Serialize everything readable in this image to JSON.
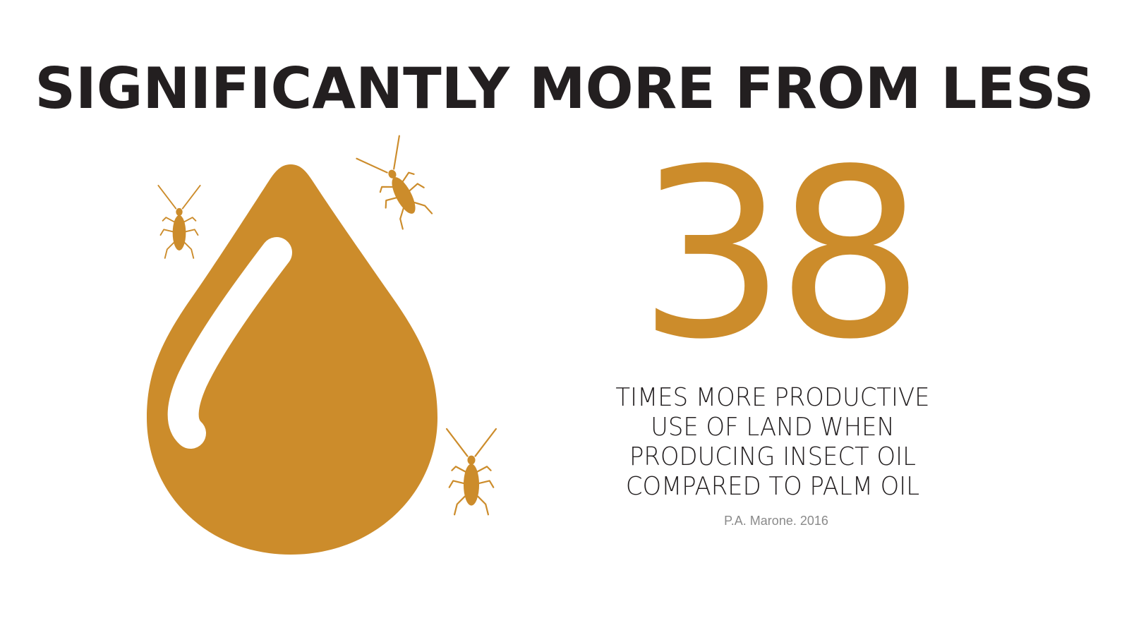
{
  "headline": "SIGNIFICANTLY MORE FROM LESS",
  "stat": {
    "value": "38",
    "description_lines": [
      "TIMES MORE PRODUCTIVE",
      "USE OF LAND WHEN",
      "PRODUCING INSECT OIL",
      "COMPARED TO PALM OIL"
    ],
    "source": "P.A. Marone. 2016"
  },
  "icons": {
    "drop": "oil-drop-icon",
    "insect": "cockroach-icon"
  },
  "colors": {
    "accent": "#cc8c2b",
    "text": "#231f20",
    "source_text": "#8a8a8a",
    "background": "#ffffff"
  }
}
